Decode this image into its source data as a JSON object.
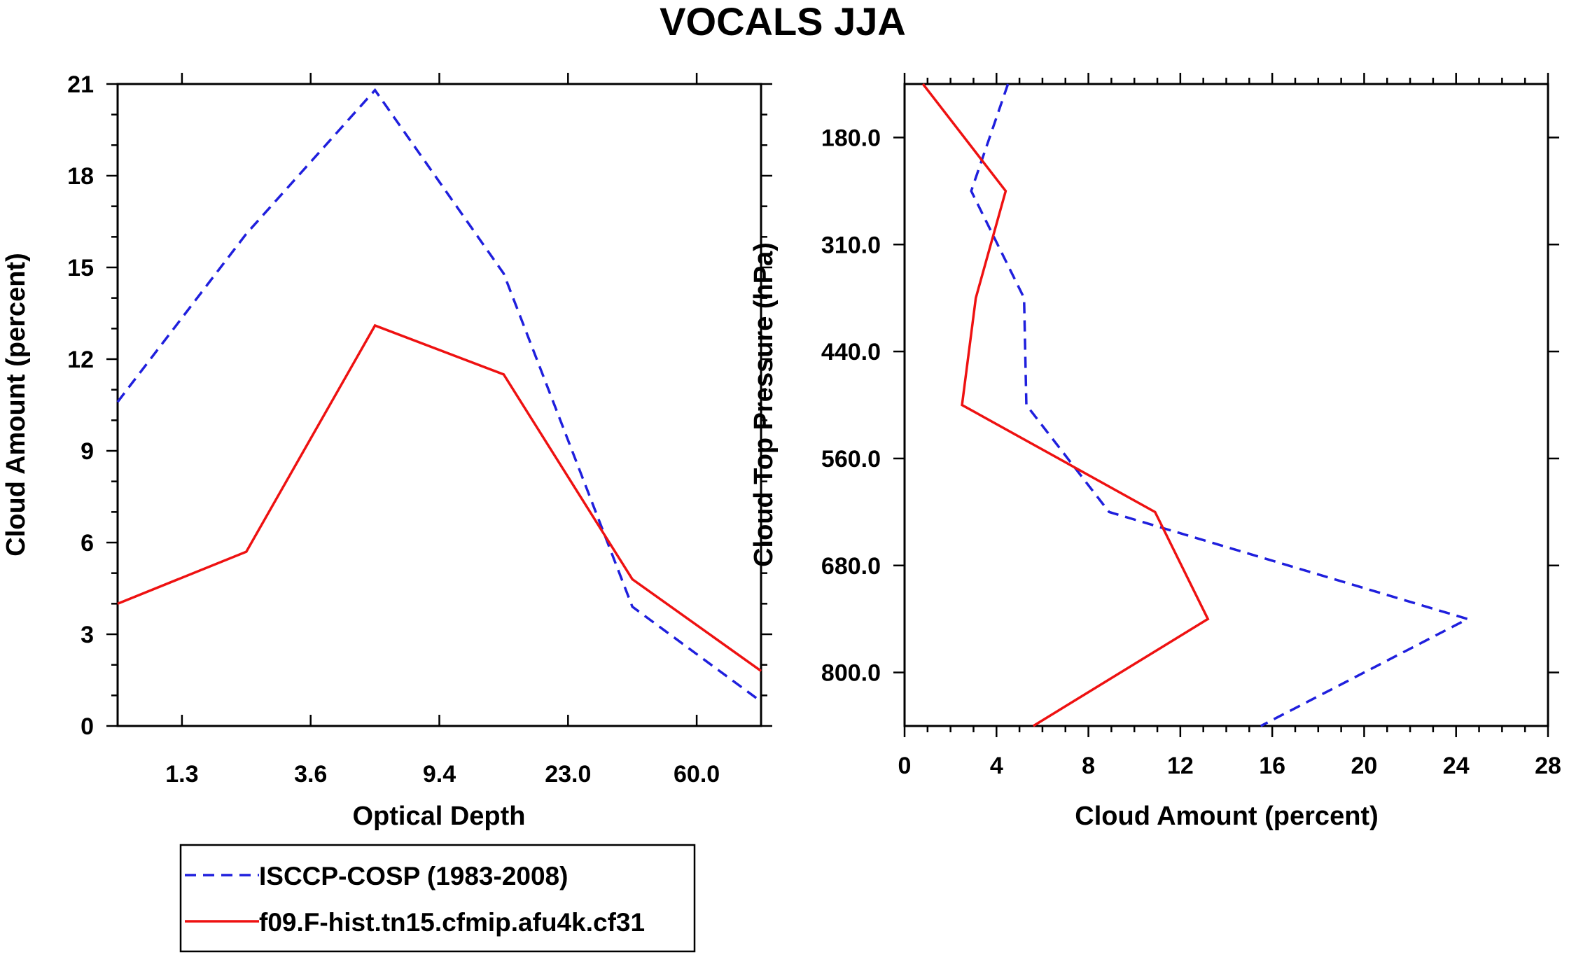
{
  "title": "VOCALS JJA",
  "colors": {
    "obs": "#1f1fdd",
    "model": "#ee1111",
    "axis": "#000000"
  },
  "chart_data": [
    {
      "type": "line",
      "panel": "left",
      "xlabel": "Optical Depth",
      "ylabel": "Cloud Amount (percent)",
      "x_tick_labels": [
        "1.3",
        "3.6",
        "9.4",
        "23.0",
        "60.0"
      ],
      "y_tick_labels": [
        "0",
        "3",
        "6",
        "9",
        "12",
        "15",
        "18",
        "21"
      ],
      "ylim": [
        0,
        21
      ],
      "x": [
        0,
        1,
        2,
        3,
        4,
        5
      ],
      "series": [
        {
          "name": "ISCCP-COSP (1983-2008)",
          "style": "dashed",
          "values": [
            10.6,
            16.1,
            20.8,
            14.8,
            3.9,
            0.8
          ]
        },
        {
          "name": "f09.F-hist.tn15.cfmip.afu4k.cf31",
          "style": "solid",
          "values": [
            4.0,
            5.7,
            13.1,
            11.5,
            4.8,
            1.8
          ]
        }
      ]
    },
    {
      "type": "line",
      "panel": "right",
      "xlabel": "Cloud Amount (percent)",
      "ylabel": "Cloud Top Pressure (hPa)",
      "x_tick_labels": [
        "0",
        "4",
        "8",
        "12",
        "16",
        "20",
        "24",
        "28"
      ],
      "y_tick_labels": [
        "180.0",
        "310.0",
        "440.0",
        "560.0",
        "680.0",
        "800.0"
      ],
      "xlim": [
        0,
        28
      ],
      "y_levels": [
        0,
        1,
        2,
        3,
        4,
        5,
        6
      ],
      "series": [
        {
          "name": "ISCCP-COSP (1983-2008)",
          "style": "dashed",
          "values": [
            4.5,
            2.9,
            5.2,
            5.3,
            8.9,
            24.5,
            15.5
          ]
        },
        {
          "name": "f09.F-hist.tn15.cfmip.afu4k.cf31",
          "style": "solid",
          "values": [
            0.8,
            4.4,
            3.1,
            2.5,
            10.9,
            13.2,
            5.6
          ]
        }
      ]
    }
  ],
  "legend": [
    {
      "label": "ISCCP-COSP (1983-2008)",
      "style": "dashed"
    },
    {
      "label": "f09.F-hist.tn15.cfmip.afu4k.cf31",
      "style": "solid"
    }
  ]
}
